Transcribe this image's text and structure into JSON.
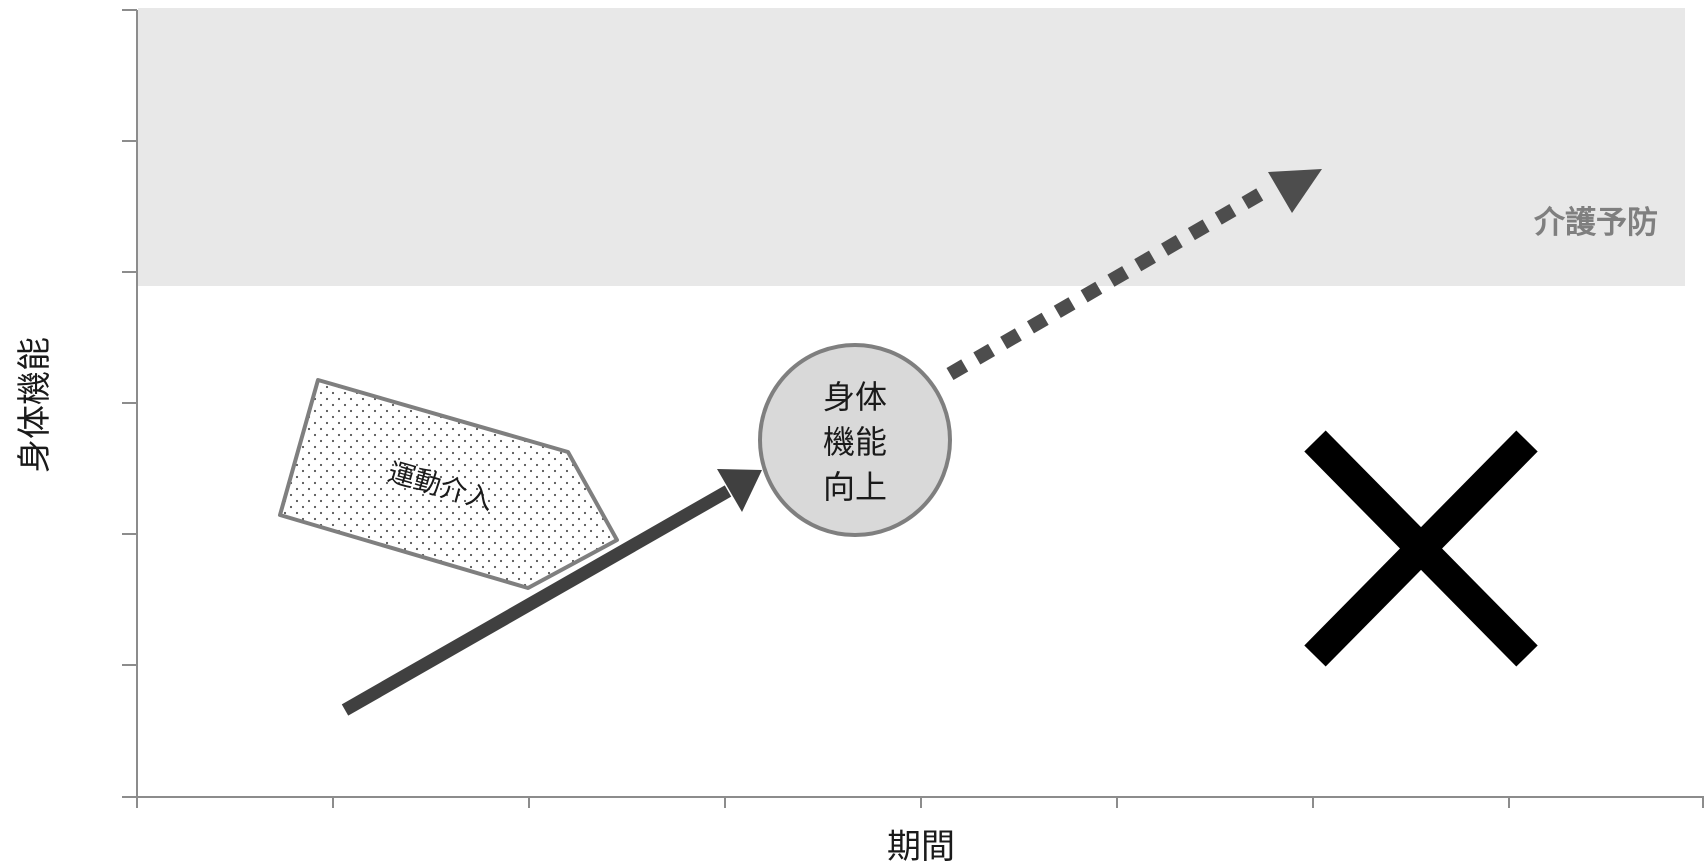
{
  "axes": {
    "x_label": "期間",
    "y_label": "身体機能"
  },
  "zone": {
    "label": "介護予防",
    "fill": "#e8e8e8"
  },
  "intervention": {
    "label": "運動介入"
  },
  "improvement": {
    "lines": [
      "身体",
      "機能",
      "向上"
    ],
    "fill": "#d9d9d9",
    "stroke": "#7f7f7f"
  },
  "arrows": {
    "solid_color": "#404040",
    "dotted_color": "#4d4d4d"
  },
  "cross": {
    "icon": "x-mark-icon",
    "color": "#000000"
  }
}
